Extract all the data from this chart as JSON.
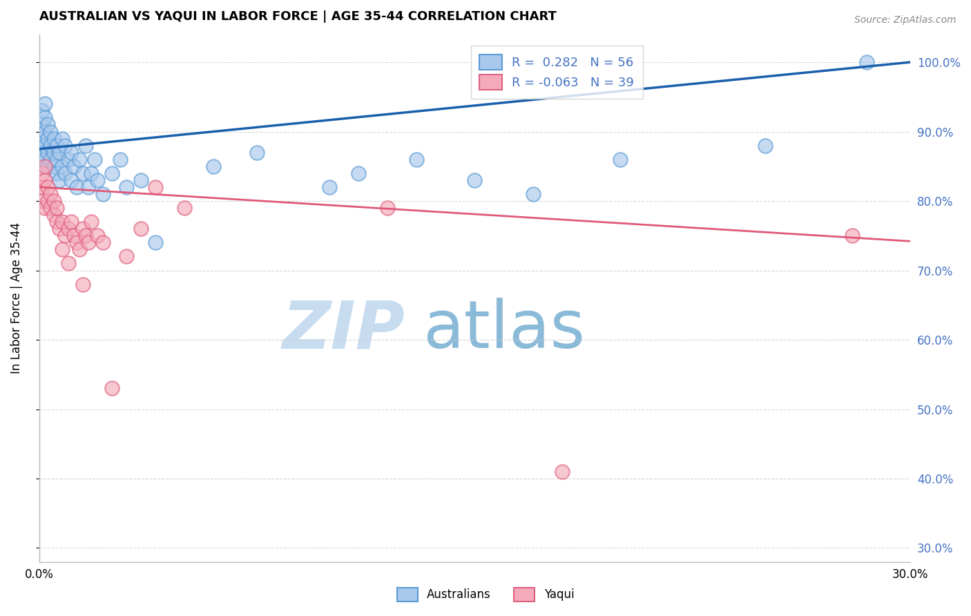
{
  "title": "AUSTRALIAN VS YAQUI IN LABOR FORCE | AGE 35-44 CORRELATION CHART",
  "source": "Source: ZipAtlas.com",
  "ylabel": "In Labor Force | Age 35-44",
  "xlim": [
    0.0,
    0.3
  ],
  "ylim": [
    0.28,
    1.04
  ],
  "xtick_positions": [
    0.0,
    0.05,
    0.1,
    0.15,
    0.2,
    0.25,
    0.3
  ],
  "xticklabels": [
    "0.0%",
    "",
    "",
    "",
    "",
    "",
    "30.0%"
  ],
  "ytick_positions": [
    0.3,
    0.4,
    0.5,
    0.6,
    0.7,
    0.8,
    0.9,
    1.0
  ],
  "yticklabels_right": [
    "30.0%",
    "40.0%",
    "50.0%",
    "60.0%",
    "70.0%",
    "80.0%",
    "90.0%",
    "100.0%"
  ],
  "legend_R_blue": "0.282",
  "legend_N_blue": "56",
  "legend_R_pink": "-0.063",
  "legend_N_pink": "39",
  "blue_color": "#A8C8EC",
  "blue_edge": "#5B9BD5",
  "pink_color": "#F4AABB",
  "pink_edge": "#E06080",
  "trendline_blue": "#1A5FAB",
  "trendline_pink": "#E05878",
  "watermark_zip": "ZIP",
  "watermark_atlas": "atlas",
  "watermark_color_zip": "#C8DCF0",
  "watermark_color_atlas": "#8BBAD8",
  "background_color": "#FFFFFF",
  "grid_color": "#CCCCCC",
  "right_tick_color": "#4472C4",
  "blue_x": [
    0.001,
    0.001,
    0.001,
    0.001,
    0.002,
    0.002,
    0.002,
    0.002,
    0.002,
    0.003,
    0.003,
    0.003,
    0.003,
    0.004,
    0.004,
    0.004,
    0.005,
    0.005,
    0.005,
    0.006,
    0.006,
    0.006,
    0.007,
    0.007,
    0.008,
    0.008,
    0.009,
    0.009,
    0.01,
    0.011,
    0.011,
    0.012,
    0.013,
    0.014,
    0.015,
    0.016,
    0.017,
    0.018,
    0.019,
    0.02,
    0.022,
    0.025,
    0.028,
    0.03,
    0.035,
    0.04,
    0.06,
    0.075,
    0.1,
    0.11,
    0.13,
    0.15,
    0.17,
    0.2,
    0.25,
    0.285
  ],
  "blue_y": [
    0.89,
    0.91,
    0.87,
    0.93,
    0.88,
    0.9,
    0.92,
    0.86,
    0.94,
    0.87,
    0.89,
    0.91,
    0.85,
    0.88,
    0.9,
    0.86,
    0.85,
    0.87,
    0.89,
    0.86,
    0.88,
    0.84,
    0.83,
    0.87,
    0.85,
    0.89,
    0.84,
    0.88,
    0.86,
    0.83,
    0.87,
    0.85,
    0.82,
    0.86,
    0.84,
    0.88,
    0.82,
    0.84,
    0.86,
    0.83,
    0.81,
    0.84,
    0.86,
    0.82,
    0.83,
    0.74,
    0.85,
    0.87,
    0.82,
    0.84,
    0.86,
    0.83,
    0.81,
    0.86,
    0.88,
    1.0
  ],
  "pink_x": [
    0.001,
    0.001,
    0.001,
    0.002,
    0.002,
    0.002,
    0.003,
    0.003,
    0.004,
    0.004,
    0.005,
    0.005,
    0.006,
    0.006,
    0.007,
    0.008,
    0.009,
    0.01,
    0.011,
    0.012,
    0.013,
    0.014,
    0.015,
    0.016,
    0.017,
    0.018,
    0.02,
    0.022,
    0.025,
    0.03,
    0.035,
    0.04,
    0.05,
    0.015,
    0.01,
    0.008,
    0.12,
    0.18,
    0.28
  ],
  "pink_y": [
    0.82,
    0.84,
    0.8,
    0.83,
    0.85,
    0.79,
    0.82,
    0.8,
    0.81,
    0.79,
    0.78,
    0.8,
    0.77,
    0.79,
    0.76,
    0.77,
    0.75,
    0.76,
    0.77,
    0.75,
    0.74,
    0.73,
    0.76,
    0.75,
    0.74,
    0.77,
    0.75,
    0.74,
    0.53,
    0.72,
    0.76,
    0.82,
    0.79,
    0.68,
    0.71,
    0.73,
    0.79,
    0.41,
    0.75
  ]
}
